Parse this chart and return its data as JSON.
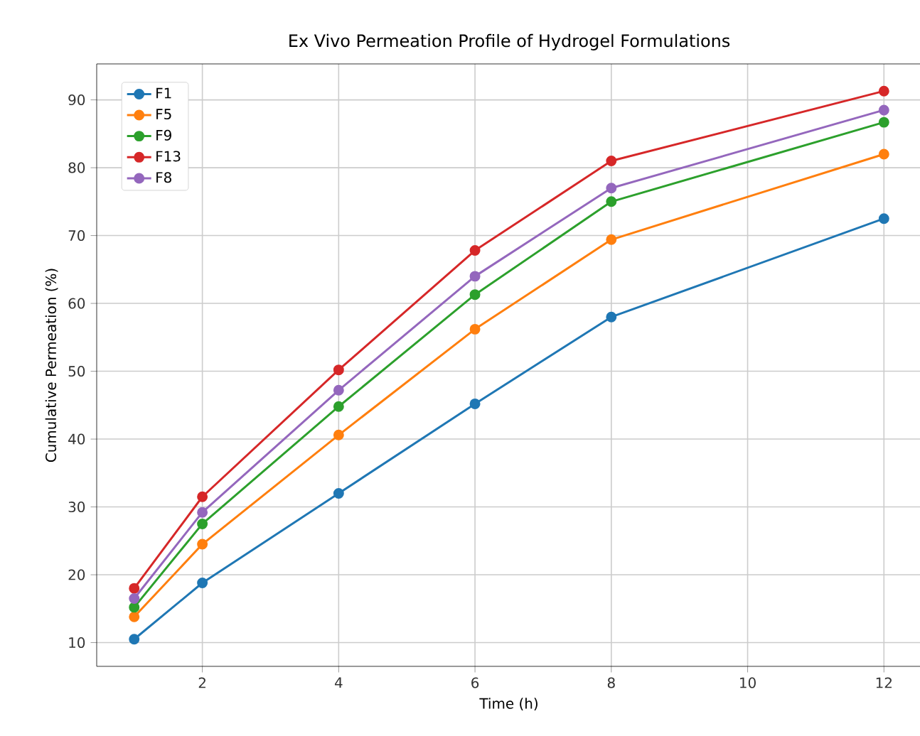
{
  "chart_data": {
    "type": "line",
    "title": "Ex Vivo Permeation Profile of Hydrogel Formulations",
    "xlabel": "Time (h)",
    "ylabel": "Cumulative Permeation (%)",
    "x": [
      1,
      2,
      4,
      6,
      8,
      12
    ],
    "series": [
      {
        "name": "F1",
        "color": "#1f77b4",
        "values": [
          10.5,
          18.8,
          32,
          45.2,
          58,
          72.5
        ]
      },
      {
        "name": "F5",
        "color": "#ff7f0e",
        "values": [
          13.8,
          24.5,
          40.6,
          56.2,
          69.4,
          82
        ]
      },
      {
        "name": "F9",
        "color": "#2ca02c",
        "values": [
          15.2,
          27.5,
          44.8,
          61.3,
          75,
          86.7
        ]
      },
      {
        "name": "F13",
        "color": "#d62728",
        "values": [
          18,
          31.5,
          50.2,
          67.8,
          81,
          91.3
        ]
      },
      {
        "name": "F8",
        "color": "#9467bd",
        "values": [
          16.5,
          29.2,
          47.2,
          64,
          77,
          88.5
        ]
      }
    ],
    "xlim": [
      0.45,
      12.55
    ],
    "ylim": [
      6.5,
      95.3
    ],
    "xticks": [
      2,
      4,
      6,
      8,
      10,
      12
    ],
    "yticks": [
      10,
      20,
      30,
      40,
      50,
      60,
      70,
      80,
      90
    ],
    "grid": true,
    "legend": "top left",
    "marker": "circle",
    "line_style": "solid"
  }
}
